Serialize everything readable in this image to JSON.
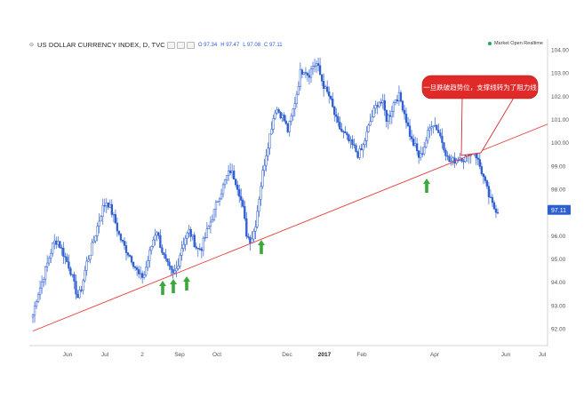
{
  "header": {
    "symbol_line": "US DOLLAR CURRENCY INDEX, D, TVC",
    "open": "97.34",
    "high": "97.47",
    "low": "97.08",
    "close": "97.11",
    "open_label": "O",
    "high_label": "H",
    "low_label": "L",
    "close_label": "C"
  },
  "status": "Market Open Realtime",
  "annotation": {
    "text": "一旦跌破趋势位，支撑线转为了阻力线"
  },
  "price_badge": "97.11",
  "colors": {
    "candle": "#2e5fd1",
    "trendline": "#e53c3c",
    "up_arrow": "#3aa83a",
    "down_arrow": "#d62b2b",
    "badge": "#2e5fd1",
    "callout_fill": "#e02a2a"
  },
  "chart_data": {
    "type": "candlestick",
    "ylim": [
      91.2,
      104.3
    ],
    "y_ticks": [
      "104.00",
      "103.00",
      "102.00",
      "101.00",
      "100.00",
      "99.00",
      "98.00",
      "97.00",
      "96.00",
      "95.00",
      "94.00",
      "93.00",
      "92.00"
    ],
    "x_tick_labels": [
      "Jun",
      "Jul",
      "2",
      "Sep",
      "Oct",
      "Dec",
      "2017",
      "Feb",
      "Apr",
      "Jun",
      "Jul"
    ],
    "price_path": [
      [
        92.6,
        93.4,
        93.9,
        94.5,
        95.1,
        95.7,
        95.8,
        95.4,
        95.0,
        94.6,
        93.9,
        93.3,
        93.9,
        94.8,
        95.3,
        95.9,
        96.6,
        97.2,
        97.5,
        97.1,
        96.6,
        96.0,
        95.6,
        95.3,
        95.0,
        94.6,
        94.2,
        94.3,
        95.0,
        95.7,
        96.3,
        95.6,
        95.0,
        94.6,
        94.3,
        94.6,
        95.4,
        95.9,
        96.2,
        95.8,
        95.4,
        95.5,
        96.0,
        96.5,
        97.0,
        97.6,
        98.0,
        98.5,
        98.8,
        98.5,
        98.0,
        97.2,
        96.0,
        95.8,
        96.4,
        97.7,
        98.9,
        99.8,
        100.7,
        101.5,
        101.3,
        101.0,
        100.5,
        101.2,
        102.0,
        103.0,
        103.2,
        102.9,
        103.3,
        103.4,
        102.8,
        102.3,
        102.0,
        101.4,
        100.8,
        100.5,
        100.3,
        100.0,
        99.8,
        99.5,
        99.7,
        100.3,
        100.9,
        101.4,
        101.8,
        101.7,
        101.0,
        101.3,
        101.9,
        102.0,
        101.5,
        100.8,
        100.1,
        99.8,
        99.3,
        99.8,
        100.4,
        100.9,
        100.7,
        100.3,
        99.8,
        99.2,
        99.2,
        99.3,
        99.4,
        99.3,
        99.6,
        99.9,
        99.3,
        98.8,
        98.2,
        97.6,
        97.2,
        97.1
      ]
    ],
    "trendline": {
      "from": [
        0.0,
        91.9
      ],
      "to": [
        1.0,
        100.8
      ]
    },
    "up_arrow_indices": [
      37,
      39,
      41,
      64,
      115
    ],
    "down_arrow_index": 125,
    "last_price": 97.11
  }
}
